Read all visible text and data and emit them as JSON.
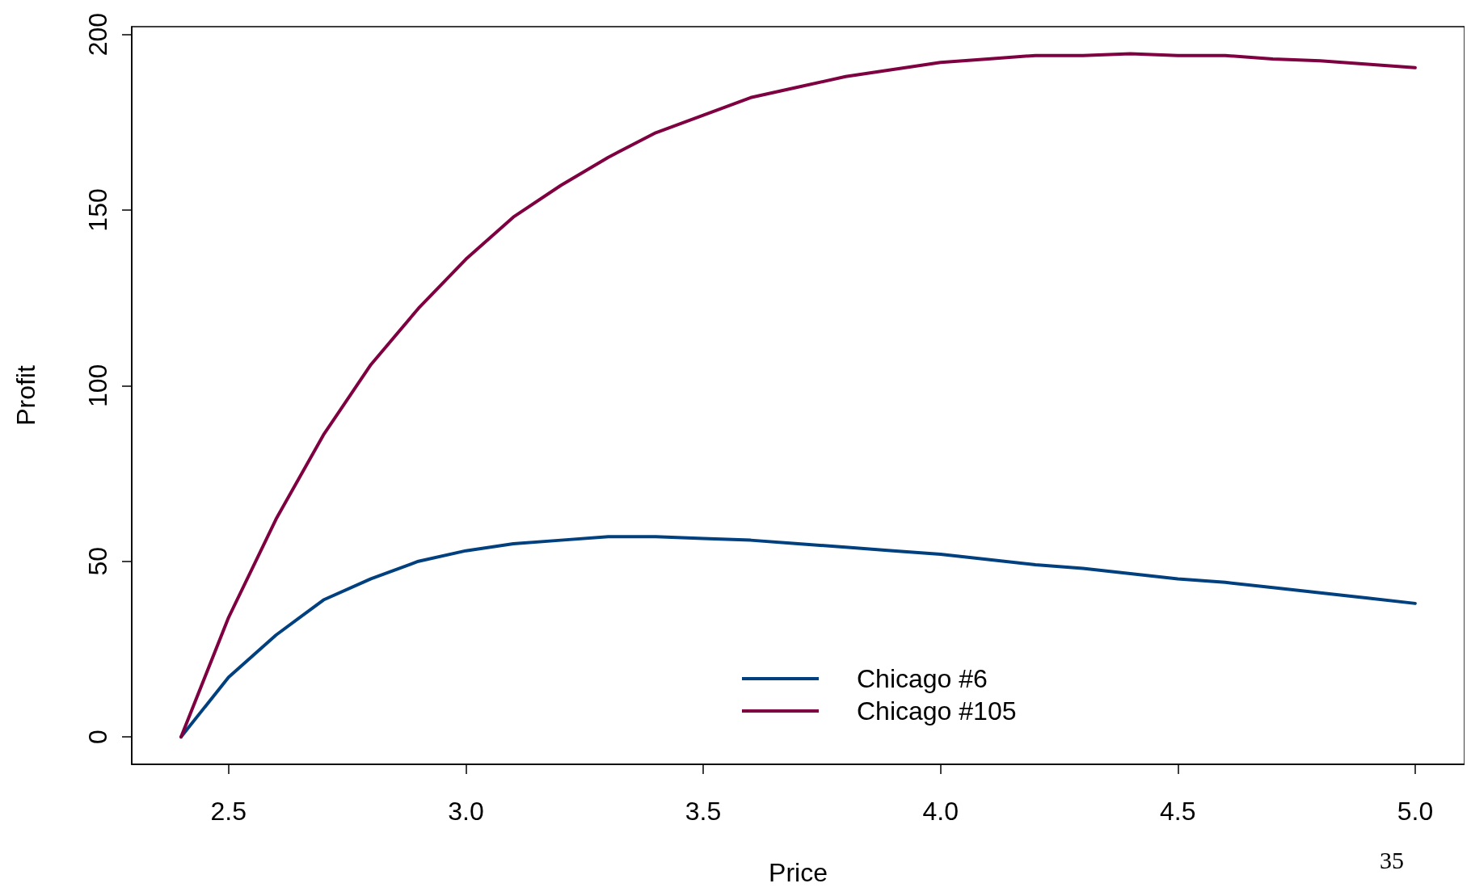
{
  "chart_data": {
    "type": "line",
    "xlabel": "Price",
    "ylabel": "Profit",
    "x": [
      2.4,
      2.5,
      2.6,
      2.7,
      2.8,
      2.9,
      3.0,
      3.1,
      3.2,
      3.3,
      3.4,
      3.5,
      3.6,
      3.7,
      3.8,
      3.9,
      4.0,
      4.1,
      4.2,
      4.3,
      4.4,
      4.5,
      4.6,
      4.7,
      4.8,
      4.9,
      5.0
    ],
    "series": [
      {
        "name": "Chicago #6",
        "color": "#00407f",
        "values": [
          0,
          17,
          29,
          39,
          45,
          50,
          53,
          55,
          56,
          57,
          57,
          56.5,
          56,
          55,
          54,
          53,
          52,
          50.5,
          49,
          48,
          46.5,
          45,
          44,
          42.5,
          41,
          39.5,
          38
        ]
      },
      {
        "name": "Chicago #105",
        "color": "#7f0040",
        "values": [
          0,
          34,
          62,
          86,
          106,
          122,
          136,
          148,
          157,
          165,
          172,
          177,
          182,
          185,
          188,
          190,
          192,
          193,
          194,
          194,
          194.5,
          194,
          194,
          193,
          192.5,
          191.5,
          190.5
        ]
      }
    ],
    "xlim": [
      2.296,
      5.104
    ],
    "ylim": [
      -7.8,
      202.2
    ],
    "xticks": [
      {
        "value": 2.5,
        "label": "2.5"
      },
      {
        "value": 3.0,
        "label": "3.0"
      },
      {
        "value": 3.5,
        "label": "3.5"
      },
      {
        "value": 4.0,
        "label": "4.0"
      },
      {
        "value": 4.5,
        "label": "4.5"
      },
      {
        "value": 5.0,
        "label": "5.0"
      }
    ],
    "yticks": [
      0,
      50,
      100,
      150,
      200
    ],
    "grid": false,
    "legend": "bottom",
    "marker": "none",
    "line_style": "solid",
    "annotations": [
      "35"
    ]
  }
}
